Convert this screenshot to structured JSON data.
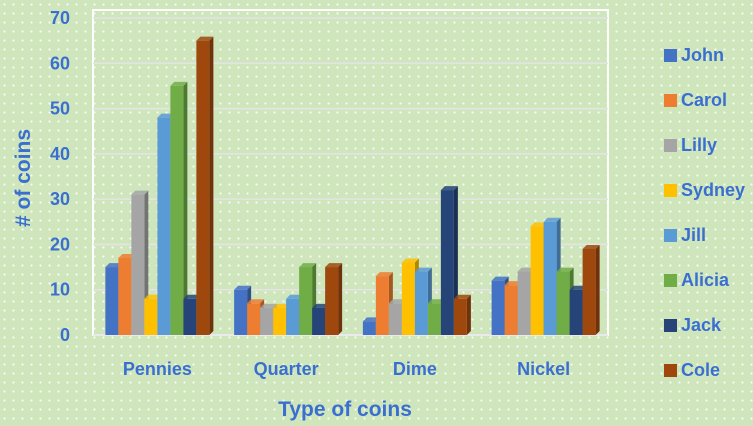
{
  "chart_data": {
    "type": "bar",
    "xlabel": "Type of coins",
    "ylabel": "# of coins",
    "ylim": [
      0,
      70
    ],
    "yticks": [
      0,
      10,
      20,
      30,
      40,
      50,
      60,
      70
    ],
    "categories": [
      "Pennies",
      "Quarter",
      "Dime",
      "Nickel"
    ],
    "series": [
      {
        "name": "John",
        "color": "#4472c4",
        "values": [
          15,
          10,
          3,
          12
        ]
      },
      {
        "name": "Carol",
        "color": "#ed7d31",
        "values": [
          17,
          7,
          13,
          11
        ]
      },
      {
        "name": "Lilly",
        "color": "#a5a5a5",
        "values": [
          31,
          6,
          7,
          14
        ]
      },
      {
        "name": "Sydney",
        "color": "#ffc000",
        "values": [
          8,
          6,
          16,
          24
        ]
      },
      {
        "name": "Jill",
        "color": "#5b9bd5",
        "values": [
          48,
          8,
          14,
          25
        ]
      },
      {
        "name": "Alicia",
        "color": "#70ad47",
        "values": [
          55,
          15,
          7,
          14
        ]
      },
      {
        "name": "Jack",
        "color": "#264478",
        "values": [
          8,
          6,
          32,
          10
        ]
      },
      {
        "name": "Cole",
        "color": "#9e480e",
        "values": [
          65,
          15,
          8,
          19
        ]
      }
    ],
    "grid": true,
    "legend_position": "right"
  }
}
